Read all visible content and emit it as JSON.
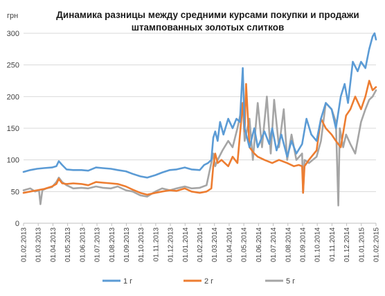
{
  "chart_data": {
    "type": "line",
    "title_lines": [
      "Динамика разницы между средними курсами покупки и продажи",
      "штампованных золотых слитков"
    ],
    "ylabel": "грн",
    "xlabel": "",
    "ylim": [
      0,
      300
    ],
    "yticks": [
      0,
      50,
      100,
      150,
      200,
      250,
      300
    ],
    "xlim": [
      "2013-02-01",
      "2015-02-01"
    ],
    "xtick_labels": [
      "01.02.2013",
      "01.03.2013",
      "01.04.2013",
      "01.05.2013",
      "01.06.2013",
      "01.07.2013",
      "01.08.2013",
      "01.09.2013",
      "01.10.2013",
      "01.11.2013",
      "01.12.2013",
      "01.01.2014",
      "01.02.2014",
      "01.03.2014",
      "01.04.2014",
      "01.05.2014",
      "01.06.2014",
      "01.07.2014",
      "01.08.2014",
      "01.09.2014",
      "01.10.2014",
      "01.11.2014",
      "01.12.2014",
      "01.01.2015",
      "01.02.2015"
    ],
    "grid": "horizontal",
    "legend_position": "bottom",
    "series": [
      {
        "name": "1 г",
        "color": "#5b9bd5",
        "points": [
          [
            "2013-02-01",
            81
          ],
          [
            "2013-02-15",
            84
          ],
          [
            "2013-03-01",
            86
          ],
          [
            "2013-03-15",
            87
          ],
          [
            "2013-04-01",
            88
          ],
          [
            "2013-04-10",
            90
          ],
          [
            "2013-04-15",
            98
          ],
          [
            "2013-04-22",
            92
          ],
          [
            "2013-05-01",
            85
          ],
          [
            "2013-05-15",
            84
          ],
          [
            "2013-06-01",
            84
          ],
          [
            "2013-06-15",
            83
          ],
          [
            "2013-07-01",
            88
          ],
          [
            "2013-07-15",
            87
          ],
          [
            "2013-08-01",
            86
          ],
          [
            "2013-08-15",
            84
          ],
          [
            "2013-09-01",
            82
          ],
          [
            "2013-09-15",
            78
          ],
          [
            "2013-10-01",
            74
          ],
          [
            "2013-10-15",
            72
          ],
          [
            "2013-11-01",
            76
          ],
          [
            "2013-11-15",
            80
          ],
          [
            "2013-12-01",
            84
          ],
          [
            "2013-12-15",
            85
          ],
          [
            "2014-01-01",
            88
          ],
          [
            "2014-01-15",
            85
          ],
          [
            "2014-02-01",
            84
          ],
          [
            "2014-02-10",
            92
          ],
          [
            "2014-02-18",
            95
          ],
          [
            "2014-02-25",
            100
          ],
          [
            "2014-03-01",
            135
          ],
          [
            "2014-03-05",
            145
          ],
          [
            "2014-03-10",
            130
          ],
          [
            "2014-03-15",
            160
          ],
          [
            "2014-03-22",
            140
          ],
          [
            "2014-04-01",
            165
          ],
          [
            "2014-04-10",
            150
          ],
          [
            "2014-04-18",
            165
          ],
          [
            "2014-04-25",
            160
          ],
          [
            "2014-05-01",
            245
          ],
          [
            "2014-05-05",
            150
          ],
          [
            "2014-05-15",
            120
          ],
          [
            "2014-05-25",
            150
          ],
          [
            "2014-06-01",
            120
          ],
          [
            "2014-06-15",
            145
          ],
          [
            "2014-06-25",
            125
          ],
          [
            "2014-07-01",
            150
          ],
          [
            "2014-07-10",
            115
          ],
          [
            "2014-07-20",
            140
          ],
          [
            "2014-08-01",
            105
          ],
          [
            "2014-08-10",
            130
          ],
          [
            "2014-08-20",
            110
          ],
          [
            "2014-09-01",
            125
          ],
          [
            "2014-09-10",
            165
          ],
          [
            "2014-09-20",
            140
          ],
          [
            "2014-10-01",
            130
          ],
          [
            "2014-10-10",
            165
          ],
          [
            "2014-10-20",
            190
          ],
          [
            "2014-11-01",
            180
          ],
          [
            "2014-11-10",
            150
          ],
          [
            "2014-11-20",
            200
          ],
          [
            "2014-11-28",
            220
          ],
          [
            "2014-12-05",
            190
          ],
          [
            "2014-12-15",
            255
          ],
          [
            "2014-12-25",
            240
          ],
          [
            "2015-01-01",
            255
          ],
          [
            "2015-01-10",
            245
          ],
          [
            "2015-01-18",
            275
          ],
          [
            "2015-01-25",
            295
          ],
          [
            "2015-01-29",
            300
          ],
          [
            "2015-02-01",
            290
          ]
        ]
      },
      {
        "name": "2 г",
        "color": "#ed7d31",
        "points": [
          [
            "2013-02-01",
            48
          ],
          [
            "2013-02-15",
            50
          ],
          [
            "2013-03-01",
            52
          ],
          [
            "2013-03-15",
            54
          ],
          [
            "2013-04-01",
            58
          ],
          [
            "2013-04-10",
            62
          ],
          [
            "2013-04-15",
            70
          ],
          [
            "2013-04-22",
            63
          ],
          [
            "2013-05-01",
            62
          ],
          [
            "2013-05-15",
            63
          ],
          [
            "2013-06-01",
            62
          ],
          [
            "2013-06-15",
            60
          ],
          [
            "2013-07-01",
            65
          ],
          [
            "2013-07-15",
            64
          ],
          [
            "2013-08-01",
            63
          ],
          [
            "2013-08-15",
            62
          ],
          [
            "2013-09-01",
            58
          ],
          [
            "2013-09-15",
            53
          ],
          [
            "2013-10-01",
            48
          ],
          [
            "2013-10-15",
            45
          ],
          [
            "2013-11-01",
            48
          ],
          [
            "2013-11-15",
            50
          ],
          [
            "2013-12-01",
            52
          ],
          [
            "2013-12-15",
            51
          ],
          [
            "2014-01-01",
            55
          ],
          [
            "2014-01-15",
            50
          ],
          [
            "2014-02-01",
            48
          ],
          [
            "2014-02-15",
            50
          ],
          [
            "2014-02-25",
            55
          ],
          [
            "2014-03-01",
            90
          ],
          [
            "2014-03-05",
            110
          ],
          [
            "2014-03-10",
            95
          ],
          [
            "2014-03-18",
            100
          ],
          [
            "2014-04-01",
            90
          ],
          [
            "2014-04-10",
            105
          ],
          [
            "2014-04-20",
            95
          ],
          [
            "2014-05-01",
            190
          ],
          [
            "2014-05-05",
            145
          ],
          [
            "2014-05-08",
            220
          ],
          [
            "2014-05-15",
            120
          ],
          [
            "2014-05-25",
            110
          ],
          [
            "2014-06-01",
            105
          ],
          [
            "2014-06-15",
            100
          ],
          [
            "2014-07-01",
            95
          ],
          [
            "2014-07-15",
            100
          ],
          [
            "2014-08-01",
            95
          ],
          [
            "2014-08-15",
            90
          ],
          [
            "2014-08-25",
            92
          ],
          [
            "2014-09-01",
            90
          ],
          [
            "2014-09-03",
            48
          ],
          [
            "2014-09-06",
            90
          ],
          [
            "2014-09-15",
            100
          ],
          [
            "2014-10-01",
            115
          ],
          [
            "2014-10-10",
            165
          ],
          [
            "2014-10-20",
            150
          ],
          [
            "2014-11-01",
            140
          ],
          [
            "2014-11-10",
            130
          ],
          [
            "2014-11-20",
            120
          ],
          [
            "2014-12-01",
            170
          ],
          [
            "2014-12-10",
            180
          ],
          [
            "2014-12-20",
            200
          ],
          [
            "2015-01-01",
            180
          ],
          [
            "2015-01-10",
            200
          ],
          [
            "2015-01-18",
            225
          ],
          [
            "2015-01-25",
            210
          ],
          [
            "2015-02-01",
            215
          ]
        ]
      },
      {
        "name": "5 г",
        "color": "#a5a5a5",
        "points": [
          [
            "2013-02-01",
            52
          ],
          [
            "2013-02-15",
            55
          ],
          [
            "2013-02-25",
            50
          ],
          [
            "2013-03-05",
            52
          ],
          [
            "2013-03-08",
            30
          ],
          [
            "2013-03-12",
            52
          ],
          [
            "2013-03-20",
            55
          ],
          [
            "2013-04-01",
            57
          ],
          [
            "2013-04-10",
            65
          ],
          [
            "2013-04-15",
            72
          ],
          [
            "2013-04-22",
            65
          ],
          [
            "2013-05-01",
            60
          ],
          [
            "2013-05-15",
            55
          ],
          [
            "2013-06-01",
            56
          ],
          [
            "2013-06-15",
            55
          ],
          [
            "2013-07-01",
            58
          ],
          [
            "2013-07-15",
            56
          ],
          [
            "2013-08-01",
            55
          ],
          [
            "2013-08-15",
            58
          ],
          [
            "2013-09-01",
            52
          ],
          [
            "2013-09-15",
            50
          ],
          [
            "2013-10-01",
            44
          ],
          [
            "2013-10-15",
            42
          ],
          [
            "2013-11-01",
            50
          ],
          [
            "2013-11-15",
            55
          ],
          [
            "2013-12-01",
            52
          ],
          [
            "2013-12-15",
            55
          ],
          [
            "2014-01-01",
            58
          ],
          [
            "2014-01-15",
            55
          ],
          [
            "2014-02-01",
            56
          ],
          [
            "2014-02-15",
            60
          ],
          [
            "2014-03-01",
            110
          ],
          [
            "2014-03-05",
            90
          ],
          [
            "2014-03-10",
            100
          ],
          [
            "2014-03-20",
            115
          ],
          [
            "2014-04-01",
            130
          ],
          [
            "2014-04-10",
            120
          ],
          [
            "2014-04-20",
            150
          ],
          [
            "2014-05-01",
            190
          ],
          [
            "2014-05-05",
            130
          ],
          [
            "2014-05-15",
            165
          ],
          [
            "2014-05-22",
            100
          ],
          [
            "2014-06-01",
            190
          ],
          [
            "2014-06-10",
            120
          ],
          [
            "2014-06-20",
            200
          ],
          [
            "2014-06-28",
            110
          ],
          [
            "2014-07-05",
            195
          ],
          [
            "2014-07-15",
            120
          ],
          [
            "2014-07-25",
            180
          ],
          [
            "2014-08-01",
            100
          ],
          [
            "2014-08-10",
            140
          ],
          [
            "2014-08-20",
            100
          ],
          [
            "2014-09-01",
            110
          ],
          [
            "2014-09-03",
            48
          ],
          [
            "2014-09-06",
            100
          ],
          [
            "2014-09-15",
            95
          ],
          [
            "2014-10-01",
            105
          ],
          [
            "2014-10-10",
            130
          ],
          [
            "2014-10-20",
            190
          ],
          [
            "2014-11-01",
            180
          ],
          [
            "2014-11-10",
            160
          ],
          [
            "2014-11-15",
            28
          ],
          [
            "2014-11-18",
            150
          ],
          [
            "2014-11-25",
            120
          ],
          [
            "2014-12-01",
            140
          ],
          [
            "2014-12-10",
            125
          ],
          [
            "2014-12-20",
            110
          ],
          [
            "2015-01-01",
            160
          ],
          [
            "2015-01-10",
            180
          ],
          [
            "2015-01-18",
            195
          ],
          [
            "2015-01-25",
            200
          ],
          [
            "2015-02-01",
            210
          ]
        ]
      }
    ]
  }
}
